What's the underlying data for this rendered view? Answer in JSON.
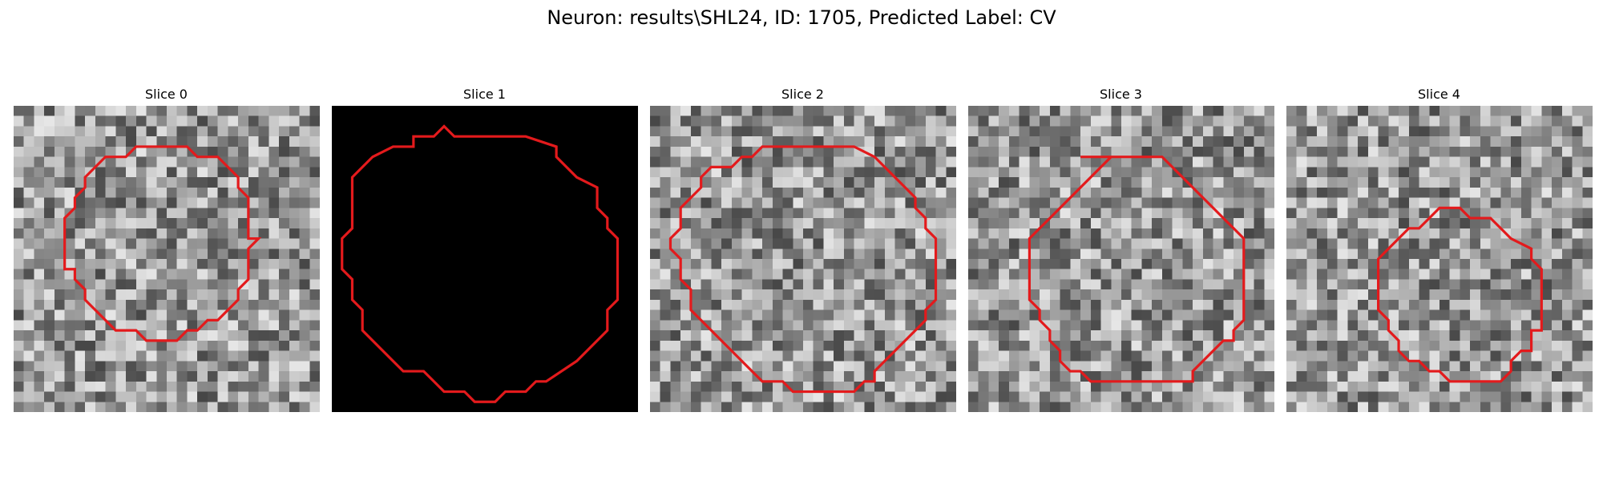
{
  "figure": {
    "suptitle": "Neuron: results\\SHL24, ID: 1705, Predicted Label: CV",
    "grid_size": 30
  },
  "panels": [
    {
      "title": "Slice 0",
      "fill": "noise",
      "seed": 11,
      "contour_color": "#e31a1c"
    },
    {
      "title": "Slice 1",
      "fill": "black",
      "seed": 0,
      "contour_color": "#e31a1c"
    },
    {
      "title": "Slice 2",
      "fill": "noise",
      "seed": 23,
      "contour_color": "#e31a1c"
    },
    {
      "title": "Slice 3",
      "fill": "noise",
      "seed": 37,
      "contour_color": "#e31a1c"
    },
    {
      "title": "Slice 4",
      "fill": "noise",
      "seed": 51,
      "contour_color": "#e31a1c"
    }
  ]
}
